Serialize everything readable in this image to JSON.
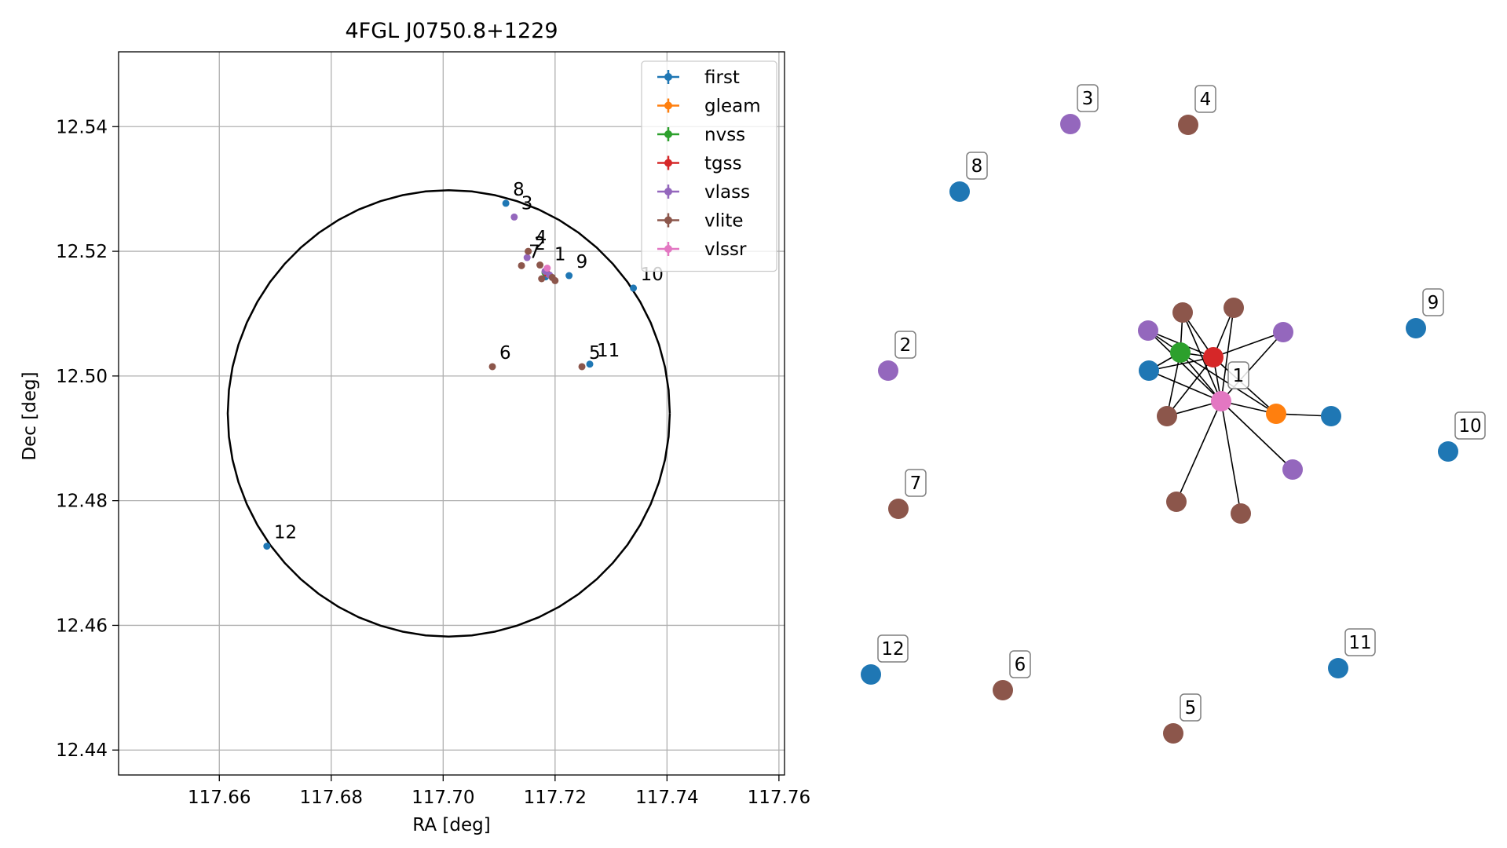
{
  "colors": {
    "first": "#1f77b4",
    "gleam": "#ff7f0e",
    "nvss": "#2ca02c",
    "tgss": "#d62728",
    "vlass": "#9467bd",
    "vlite": "#8c564b",
    "vlssr": "#e377c2",
    "circle": "#000000",
    "grid": "#b0b0b0"
  },
  "chart_data": [
    {
      "type": "scatter",
      "title": "4FGL J0750.8+1229",
      "xlabel": "RA [deg]",
      "ylabel": "Dec [deg]",
      "xlim": [
        117.642,
        117.761
      ],
      "ylim": [
        12.436,
        12.552
      ],
      "x_ticks": [
        117.66,
        117.68,
        117.7,
        117.72,
        117.74,
        117.76
      ],
      "x_tick_labels": [
        "117.66",
        "117.68",
        "117.70",
        "117.72",
        "117.74",
        "117.76"
      ],
      "y_ticks": [
        12.44,
        12.46,
        12.48,
        12.5,
        12.52,
        12.54
      ],
      "y_tick_labels": [
        "12.44",
        "12.46",
        "12.48",
        "12.50",
        "12.52",
        "12.54"
      ],
      "grid": true,
      "legend_position": "top-right",
      "circle": {
        "center": [
          117.701,
          12.494
        ],
        "radius_ra": 0.0395,
        "radius_dec": 0.0358
      },
      "series": [
        {
          "name": "first",
          "points": [
            {
              "x": 117.7112,
              "y": 12.5277,
              "label": "8"
            },
            {
              "x": 117.7225,
              "y": 12.5161,
              "label": "9"
            },
            {
              "x": 117.734,
              "y": 12.5141,
              "label": "10"
            },
            {
              "x": 117.7262,
              "y": 12.5019,
              "label": "11"
            },
            {
              "x": 117.6685,
              "y": 12.4727,
              "label": "12"
            },
            {
              "x": 117.7183,
              "y": 12.5159,
              "label": ""
            }
          ]
        },
        {
          "name": "gleam",
          "points": [
            {
              "x": 117.7188,
              "y": 12.5163,
              "label": ""
            }
          ]
        },
        {
          "name": "nvss",
          "points": [
            {
              "x": 117.7182,
              "y": 12.5166,
              "label": ""
            }
          ]
        },
        {
          "name": "tgss",
          "points": [
            {
              "x": 117.7185,
              "y": 12.5165,
              "label": ""
            }
          ]
        },
        {
          "name": "vlass",
          "points": [
            {
              "x": 117.7127,
              "y": 12.5255,
              "label": "3"
            },
            {
              "x": 117.715,
              "y": 12.519,
              "label": "2"
            },
            {
              "x": 117.7182,
              "y": 12.5168,
              "label": ""
            },
            {
              "x": 117.719,
              "y": 12.5162,
              "label": ""
            }
          ]
        },
        {
          "name": "vlite",
          "points": [
            {
              "x": 117.7152,
              "y": 12.52,
              "label": "4"
            },
            {
              "x": 117.714,
              "y": 12.5177,
              "label": "7"
            },
            {
              "x": 117.7088,
              "y": 12.5015,
              "label": "6"
            },
            {
              "x": 117.7248,
              "y": 12.5015,
              "label": "5"
            },
            {
              "x": 117.7173,
              "y": 12.5178,
              "label": ""
            },
            {
              "x": 117.7176,
              "y": 12.5156,
              "label": ""
            },
            {
              "x": 117.7195,
              "y": 12.5158,
              "label": ""
            },
            {
              "x": 117.72,
              "y": 12.5153,
              "label": ""
            }
          ]
        },
        {
          "name": "vlssr",
          "points": [
            {
              "x": 117.7186,
              "y": 12.5173,
              "label": "1"
            }
          ]
        }
      ]
    },
    {
      "type": "network",
      "nodes": [
        {
          "id": "c1",
          "catalog": "vlssr",
          "label": "1"
        },
        {
          "id": "c2",
          "catalog": "vlass",
          "label": "2"
        },
        {
          "id": "c3",
          "catalog": "vlass",
          "label": "3"
        },
        {
          "id": "c4",
          "catalog": "vlite",
          "label": "4"
        },
        {
          "id": "c5",
          "catalog": "vlite",
          "label": "5"
        },
        {
          "id": "c6",
          "catalog": "vlite",
          "label": "6"
        },
        {
          "id": "c7",
          "catalog": "vlite",
          "label": "7"
        },
        {
          "id": "c8",
          "catalog": "first",
          "label": "8"
        },
        {
          "id": "c9",
          "catalog": "first",
          "label": "9"
        },
        {
          "id": "c10",
          "catalog": "first",
          "label": "10"
        },
        {
          "id": "c11",
          "catalog": "first",
          "label": "11"
        },
        {
          "id": "c12",
          "catalog": "first",
          "label": "12"
        },
        {
          "id": "nvss",
          "catalog": "nvss",
          "label": ""
        },
        {
          "id": "tgss",
          "catalog": "tgss",
          "label": ""
        },
        {
          "id": "gleam",
          "catalog": "gleam",
          "label": ""
        },
        {
          "id": "vl_a",
          "catalog": "vlass",
          "label": ""
        },
        {
          "id": "vl_b",
          "catalog": "vlass",
          "label": ""
        },
        {
          "id": "vl_c",
          "catalog": "vlass",
          "label": ""
        },
        {
          "id": "vt_a",
          "catalog": "vlite",
          "label": ""
        },
        {
          "id": "vt_b",
          "catalog": "vlite",
          "label": ""
        },
        {
          "id": "vt_c",
          "catalog": "vlite",
          "label": ""
        },
        {
          "id": "vt_d",
          "catalog": "vlite",
          "label": ""
        },
        {
          "id": "vt_e",
          "catalog": "vlite",
          "label": ""
        },
        {
          "id": "fi_a",
          "catalog": "first",
          "label": ""
        },
        {
          "id": "fi_b",
          "catalog": "first",
          "label": ""
        }
      ],
      "edges": [
        [
          "c1",
          "nvss"
        ],
        [
          "c1",
          "tgss"
        ],
        [
          "c1",
          "gleam"
        ],
        [
          "c1",
          "vl_a"
        ],
        [
          "c1",
          "vl_b"
        ],
        [
          "c1",
          "vl_c"
        ],
        [
          "c1",
          "vt_a"
        ],
        [
          "c1",
          "vt_b"
        ],
        [
          "c1",
          "vt_c"
        ],
        [
          "c1",
          "vt_d"
        ],
        [
          "c1",
          "vt_e"
        ],
        [
          "c1",
          "fi_a"
        ],
        [
          "nvss",
          "tgss"
        ],
        [
          "nvss",
          "vl_a"
        ],
        [
          "nvss",
          "vt_a"
        ],
        [
          "nvss",
          "fi_a"
        ],
        [
          "nvss",
          "vt_c"
        ],
        [
          "nvss",
          "gleam"
        ],
        [
          "tgss",
          "vl_a"
        ],
        [
          "tgss",
          "vt_a"
        ],
        [
          "tgss",
          "vt_b"
        ],
        [
          "tgss",
          "vl_b"
        ],
        [
          "tgss",
          "fi_a"
        ],
        [
          "tgss",
          "gleam"
        ],
        [
          "tgss",
          "vt_c"
        ],
        [
          "gleam",
          "fi_b"
        ]
      ]
    }
  ]
}
